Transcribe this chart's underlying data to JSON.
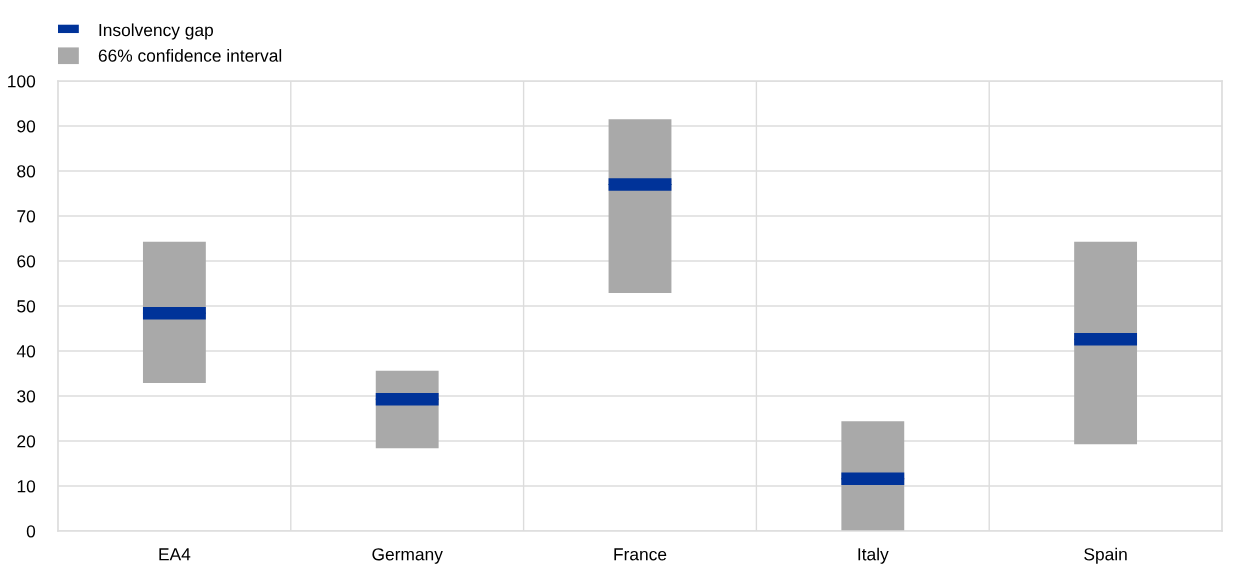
{
  "chart_data": {
    "type": "bar",
    "categories": [
      "EA4",
      "Germany",
      "France",
      "Italy",
      "Spain"
    ],
    "series": [
      {
        "name": "Insolvency gap",
        "type": "box",
        "color": "#003399",
        "boxes": [
          {
            "low": 48.4,
            "q1": 48.4,
            "median": 48.4,
            "q3": 48.4,
            "high": 48.4
          },
          {
            "low": 29.3,
            "q1": 29.3,
            "median": 29.3,
            "q3": 29.3,
            "high": 29.3
          },
          {
            "low": 77.0,
            "q1": 77.0,
            "median": 77.0,
            "q3": 77.0,
            "high": 77.0
          },
          {
            "low": 11.6,
            "q1": 11.6,
            "median": 11.6,
            "q3": 11.6,
            "high": 11.6
          },
          {
            "low": 42.6,
            "q1": 42.6,
            "median": 42.6,
            "q3": 42.6,
            "high": 42.6
          }
        ]
      },
      {
        "name": "66% confidence interval",
        "color": "#a9a9a9",
        "base": [
          32.9,
          18.4,
          52.9,
          0,
          19.3
        ],
        "values": [
          31.4,
          17.2,
          38.6,
          24.4,
          45.0
        ]
      }
    ],
    "ylim": [
      0,
      100
    ],
    "yticks": [
      0,
      10,
      20,
      30,
      40,
      50,
      60,
      70,
      80,
      90,
      100
    ],
    "grid": true,
    "legend": "top left"
  }
}
